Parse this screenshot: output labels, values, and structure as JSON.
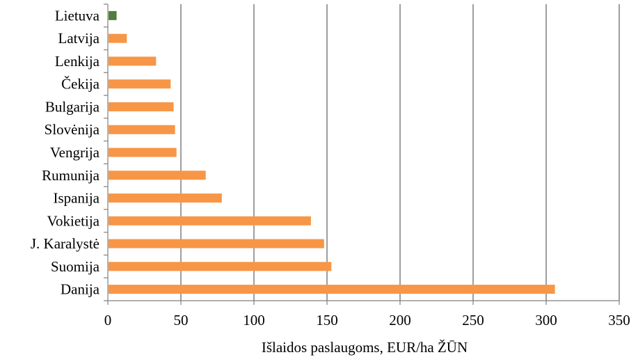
{
  "chart_data": {
    "type": "bar",
    "orientation": "horizontal",
    "title": "",
    "xlabel": "Išlaidos paslaugoms, EUR/ha ŽŪN",
    "ylabel": "",
    "xlim": [
      0,
      350
    ],
    "x_ticks": [
      "0",
      "50",
      "100",
      "150",
      "200",
      "250",
      "300",
      "350"
    ],
    "grid": "vertical",
    "legend": "none",
    "colors": {
      "default_bar": "#F79646",
      "highlight_bar": "#4F7F3B",
      "grid": "#7F7F7F",
      "axis": "#7F7F7F"
    },
    "categories": [
      "Lietuva",
      "Latvija",
      "Lenkija",
      "Čekija",
      "Bulgarija",
      "Slovėnija",
      "Vengrija",
      "Rumunija",
      "Ispanija",
      "Vokietija",
      "J. Karalystė",
      "Suomija",
      "Danija"
    ],
    "values": [
      6,
      13,
      33,
      43,
      45,
      46,
      47,
      67,
      78,
      139,
      148,
      153,
      306
    ],
    "highlight": [
      "Lietuva"
    ]
  }
}
